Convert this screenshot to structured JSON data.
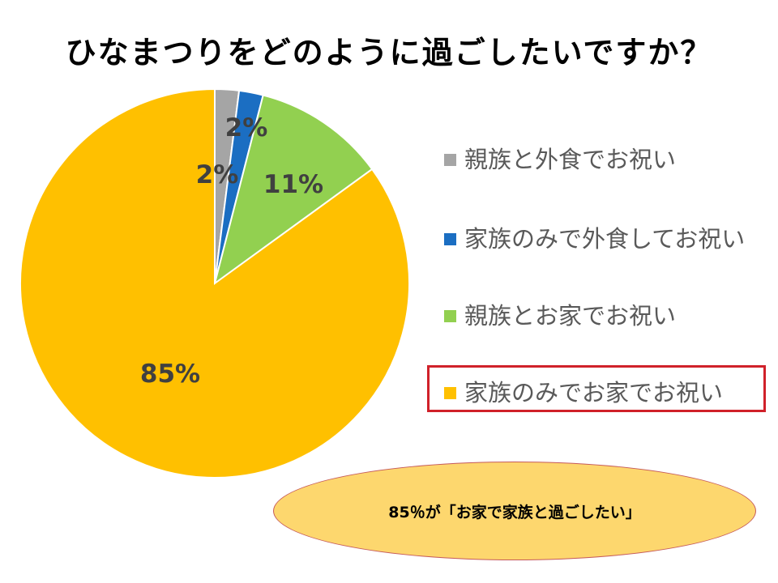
{
  "title": "ひなまつりをどのように過ごしたいですか？",
  "chart_data": {
    "type": "pie",
    "title": "ひなまつりをどのように過ごしたいですか？",
    "categories": [
      "親族と外食でお祝い",
      "家族のみで外食してお祝い",
      "親族とお家でお祝い",
      "家族のみでお家でお祝い"
    ],
    "values": [
      2,
      2,
      11,
      85
    ],
    "labels": [
      "2%",
      "2%",
      "11%",
      "85%"
    ],
    "colors": [
      "#a5a5a5",
      "#1b6ec2",
      "#92d050",
      "#ffc000"
    ],
    "start_angle": "12 o'clock",
    "direction": "clockwise",
    "legend_position": "right"
  },
  "highlight": {
    "category": "家族のみでお家でお祝い",
    "border_color": "#d0212a"
  },
  "callout": {
    "text": "85％が「お家で家族と過ごしたい」",
    "fill_color": "#fdd76e"
  }
}
